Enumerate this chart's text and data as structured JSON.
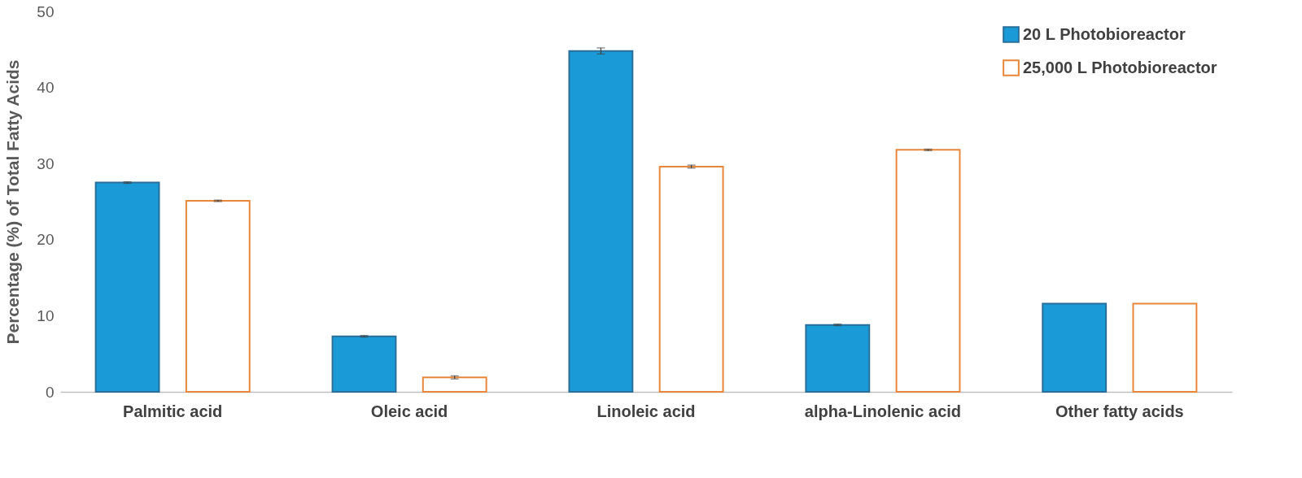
{
  "chart_data": {
    "type": "bar",
    "ylabel": "Percentage (%) of Total Fatty Acids",
    "categories": [
      "Palmitic acid",
      "Oleic acid",
      "Linoleic acid",
      "alpha-Linolenic acid",
      "Other fatty acids"
    ],
    "series": [
      {
        "name": "20 L Photobioreactor",
        "color": "#1a9ad6",
        "values": [
          27.5,
          7.3,
          44.8,
          8.8,
          11.6
        ],
        "errors": [
          0.1,
          0.1,
          0.4,
          0.1,
          null
        ]
      },
      {
        "name": "25,000 L Photobioreactor",
        "color": "#e8873a",
        "values": [
          25.1,
          1.9,
          29.6,
          31.8,
          11.6
        ],
        "errors": [
          0.1,
          0.2,
          0.2,
          0.1,
          null
        ]
      }
    ],
    "ylim": [
      0,
      50
    ],
    "yticks": [
      0,
      10,
      20,
      30,
      40,
      50
    ],
    "grid": false,
    "legend": "top right"
  }
}
